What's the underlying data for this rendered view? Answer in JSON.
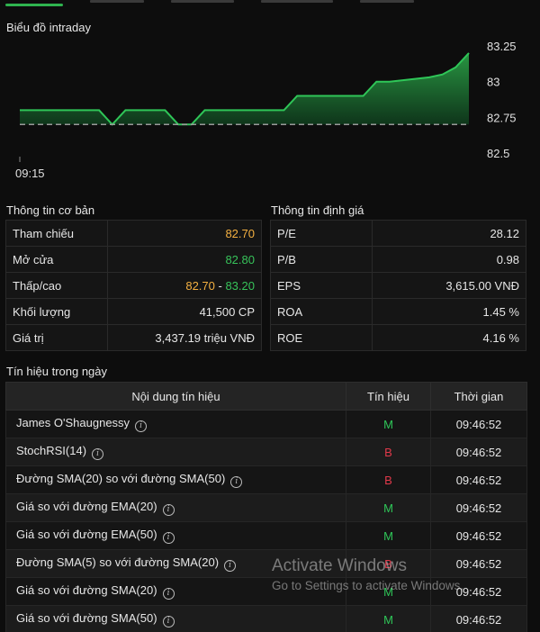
{
  "chart": {
    "title": "Biểu đồ intraday",
    "y_ticks": [
      "83.25",
      "83",
      "82.75",
      "82.5"
    ],
    "x_ticks": [
      "09:15"
    ],
    "colors": {
      "line": "#2fc658",
      "fill_top": "#2a9d45",
      "fill_bottom": "#0f3a1c",
      "reference": "#9a9a9a"
    }
  },
  "chart_data": {
    "type": "area",
    "title": "Biểu đồ intraday",
    "x_ticks": [
      "09:15"
    ],
    "ylim": [
      82.5,
      83.3
    ],
    "reference": 82.7,
    "y": [
      82.8,
      82.8,
      82.8,
      82.8,
      82.8,
      82.8,
      82.8,
      82.7,
      82.8,
      82.8,
      82.8,
      82.8,
      82.7,
      82.7,
      82.8,
      82.8,
      82.8,
      82.8,
      82.8,
      82.8,
      82.8,
      82.9,
      82.9,
      82.9,
      82.9,
      82.9,
      82.9,
      83.0,
      83.0,
      83.01,
      83.02,
      83.03,
      83.05,
      83.1,
      83.2
    ]
  },
  "basic": {
    "title": "Thông tin cơ bản",
    "rows": [
      {
        "label": "Tham chiếu",
        "value": "82.70",
        "color": "#f4b041"
      },
      {
        "label": "Mở cửa",
        "value": "82.80",
        "color": "#37c35a"
      },
      {
        "label": "Khối lượng",
        "value": "41,500 CP",
        "color": "#e6e6e6"
      },
      {
        "label": "Giá trị",
        "value": "3,437.19 triệu VNĐ",
        "color": "#e6e6e6"
      }
    ],
    "range": {
      "label": "Thấp/cao",
      "low": "82.70",
      "sep": " - ",
      "high": "83.20",
      "low_color": "#f4b041",
      "high_color": "#37c35a"
    }
  },
  "valuation": {
    "title": "Thông tin định giá",
    "rows": [
      {
        "label": "P/E",
        "value": "28.12"
      },
      {
        "label": "P/B",
        "value": "0.98"
      },
      {
        "label": "EPS",
        "value": "3,615.00 VNĐ"
      },
      {
        "label": "ROA",
        "value": "1.45 %"
      },
      {
        "label": "ROE",
        "value": "4.16 %"
      }
    ]
  },
  "signals": {
    "title": "Tín hiệu trong ngày",
    "headers": [
      "Nội dung tín hiệu",
      "Tín hiệu",
      "Thời gian"
    ],
    "rows": [
      {
        "name": "James O'Shaugnessy",
        "signal": "M",
        "time": "09:46:52"
      },
      {
        "name": "StochRSI(14)",
        "signal": "B",
        "time": "09:46:52"
      },
      {
        "name": "Đường SMA(20) so với đường SMA(50)",
        "signal": "B",
        "time": "09:46:52"
      },
      {
        "name": "Giá so với đường EMA(20)",
        "signal": "M",
        "time": "09:46:52"
      },
      {
        "name": "Giá so với đường EMA(50)",
        "signal": "M",
        "time": "09:46:52"
      },
      {
        "name": "Đường SMA(5) so với đường SMA(20)",
        "signal": "B",
        "time": "09:46:52"
      },
      {
        "name": "Giá so với đường SMA(20)",
        "signal": "M",
        "time": "09:46:52"
      },
      {
        "name": "Giá so với đường SMA(50)",
        "signal": "M",
        "time": "09:46:52"
      }
    ],
    "signal_colors": {
      "M": "#2fc658",
      "B": "#e0394a"
    },
    "info_icon": "info-circle-icon"
  },
  "watermark": {
    "line1": "Activate Windows",
    "line2": "Go to Settings to activate Windows."
  }
}
